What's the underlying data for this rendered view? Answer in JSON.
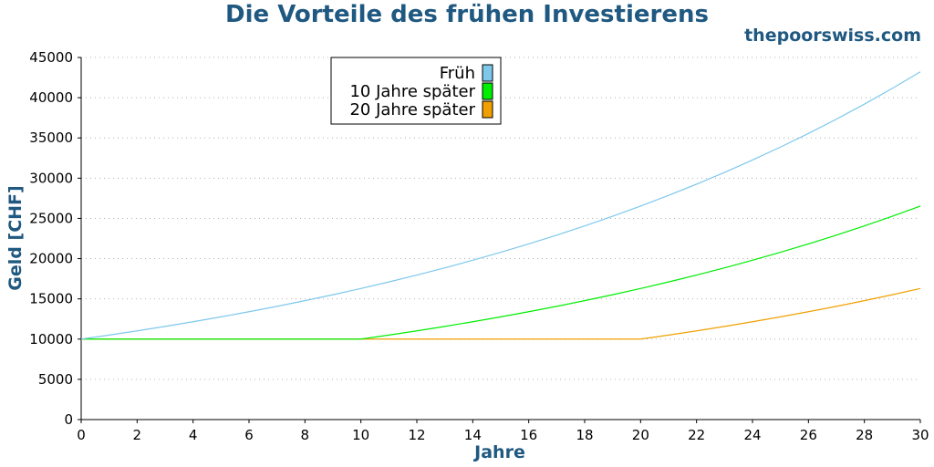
{
  "header": {
    "title": "Die Vorteile des frühen Investierens",
    "brand": "thepoorswiss.com"
  },
  "colors": {
    "title": "#1f5880",
    "grid": "#b0b0b0"
  },
  "chart_data": {
    "type": "line",
    "title": "Die Vorteile des frühen Investierens",
    "xlabel": "Jahre",
    "ylabel": "Geld [CHF]",
    "xlim": [
      0,
      30
    ],
    "ylim": [
      0,
      45000
    ],
    "xticks": [
      0,
      2,
      4,
      6,
      8,
      10,
      12,
      14,
      16,
      18,
      20,
      22,
      24,
      26,
      28,
      30
    ],
    "yticks": [
      0,
      5000,
      10000,
      15000,
      20000,
      25000,
      30000,
      35000,
      40000,
      45000
    ],
    "grid": "horizontal dotted",
    "legend_position": "top-center",
    "x": [
      0,
      1,
      2,
      3,
      4,
      5,
      6,
      7,
      8,
      9,
      10,
      11,
      12,
      13,
      14,
      15,
      16,
      17,
      18,
      19,
      20,
      21,
      22,
      23,
      24,
      25,
      26,
      27,
      28,
      29,
      30
    ],
    "series": [
      {
        "name": "Früh",
        "color": "#7ec8ec",
        "values": [
          10000,
          10500,
          11025,
          11576,
          12155,
          12763,
          13401,
          14071,
          14775,
          15513,
          16289,
          17103,
          17959,
          18856,
          19799,
          20789,
          21829,
          22920,
          24066,
          25270,
          26533,
          27860,
          29253,
          30715,
          32251,
          33864,
          35557,
          37335,
          39201,
          41161,
          43219
        ]
      },
      {
        "name": "10 Jahre später",
        "color": "#00ee00",
        "values": [
          10000,
          10000,
          10000,
          10000,
          10000,
          10000,
          10000,
          10000,
          10000,
          10000,
          10000,
          10500,
          11025,
          11576,
          12155,
          12763,
          13401,
          14071,
          14775,
          15513,
          16289,
          17103,
          17959,
          18856,
          19799,
          20789,
          21829,
          22920,
          24066,
          25270,
          26533
        ]
      },
      {
        "name": "20 Jahre später",
        "color": "#f0a000",
        "values": [
          10000,
          10000,
          10000,
          10000,
          10000,
          10000,
          10000,
          10000,
          10000,
          10000,
          10000,
          10000,
          10000,
          10000,
          10000,
          10000,
          10000,
          10000,
          10000,
          10000,
          10000,
          10500,
          11025,
          11576,
          12155,
          12763,
          13401,
          14071,
          14775,
          15513,
          16289
        ]
      }
    ]
  }
}
